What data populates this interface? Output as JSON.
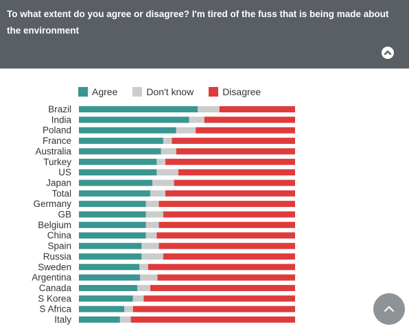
{
  "header": {
    "question": "To what extent do you agree or disagree? I'm tired of the fuss that is being made about the environment",
    "collapse_icon": "chevron-up-circle-icon"
  },
  "scroll_top_icon": "chevron-up-icon",
  "colors": {
    "header_bg": "#5a5f66",
    "agree": "#3a9690",
    "dont_know": "#cccccc",
    "disagree": "#de3c3c"
  },
  "chart_data": {
    "type": "bar",
    "orientation": "horizontal",
    "stacked": true,
    "unit": "percent",
    "legend_position": "top",
    "categories": [
      "Brazil",
      "India",
      "Poland",
      "France",
      "Australia",
      "Turkey",
      "US",
      "Japan",
      "Total",
      "Germany",
      "GB",
      "Belgium",
      "China",
      "Spain",
      "Russia",
      "Sweden",
      "Argentina",
      "Canada",
      "S Korea",
      "S Africa",
      "Italy"
    ],
    "series": [
      {
        "name": "Agree",
        "color": "#3a9690",
        "values": [
          55,
          51,
          45,
          39,
          38,
          36,
          36,
          34,
          33,
          31,
          31,
          31,
          31,
          29,
          29,
          28,
          28,
          27,
          25,
          21,
          19
        ]
      },
      {
        "name": "Don't know",
        "color": "#cccccc",
        "values": [
          10,
          7,
          9,
          4,
          7,
          4,
          10,
          10,
          7,
          6,
          8,
          6,
          5,
          8,
          10,
          4,
          8,
          6,
          5,
          4,
          5
        ]
      },
      {
        "name": "Disagree",
        "color": "#de3c3c",
        "values": [
          35,
          42,
          46,
          57,
          55,
          60,
          54,
          56,
          60,
          63,
          61,
          63,
          64,
          63,
          61,
          68,
          63,
          67,
          70,
          75,
          76
        ]
      }
    ]
  }
}
